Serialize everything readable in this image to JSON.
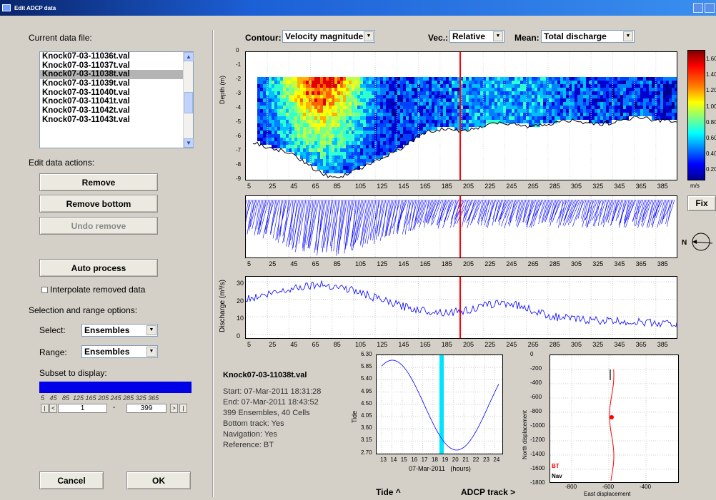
{
  "window": {
    "title": "Edit ADCP data"
  },
  "left": {
    "current_file_label": "Current data file:",
    "files": [
      "Knock07-03-11036t.val",
      "Knock07-03-11037t.val",
      "Knock07-03-11038t.val",
      "Knock07-03-11039t.val",
      "Knock07-03-11040t.val",
      "Knock07-03-11041t.val",
      "Knock07-03-11042t.val",
      "Knock07-03-11043t.val"
    ],
    "selected_file": "Knock07-03-11038t.val",
    "edit_actions_label": "Edit data actions:",
    "remove_label": "Remove",
    "remove_bottom_label": "Remove bottom",
    "undo_remove_label": "Undo remove",
    "auto_process_label": "Auto process",
    "interpolate_label": "Interpolate removed data",
    "selection_label": "Selection and range options:",
    "select_label": "Select:",
    "select_value": "Ensembles",
    "range_label": "Range:",
    "range_value": "Ensembles",
    "subset_label": "Subset to display:",
    "subset_ticks": "5   45   85  125 165 205 245 285 325 365",
    "subset_min": "1",
    "subset_dash": "-",
    "subset_max": "399",
    "cancel_label": "Cancel",
    "ok_label": "OK"
  },
  "toolbar": {
    "contour_label": "Contour:",
    "contour_value": "Velocity magnitude",
    "vec_label": "Vec.:",
    "vec_value": "Relative",
    "mean_label": "Mean:",
    "mean_value": "Total discharge"
  },
  "plots": {
    "ensemble_ticks": [
      "5",
      "25",
      "45",
      "65",
      "85",
      "105",
      "125",
      "145",
      "165",
      "185",
      "205",
      "225",
      "245",
      "265",
      "285",
      "305",
      "325",
      "345",
      "365",
      "385"
    ],
    "depth_ylabel": "Depth (m)",
    "depth_ticks": [
      "0",
      "-1",
      "-2",
      "-3",
      "-4",
      "-5",
      "-6",
      "-7",
      "-8",
      "-9"
    ],
    "discharge_ylabel": "Discharge (m³/s)",
    "discharge_ticks": [
      "30",
      "20",
      "10",
      "0"
    ],
    "colorbar_ticks": [
      "1.60",
      "1.40",
      "1.20",
      "1.00",
      "0.80",
      "0.60",
      "0.40",
      "0.20"
    ],
    "colorbar_unit": "m/s",
    "fix_label": "Fix",
    "compass_label": "N"
  },
  "info": {
    "filename": "Knock07-03-11038t.val",
    "start": "Start: 07-Mar-2011 18:31:28",
    "end": "End: 07-Mar-2011 18:43:52",
    "ensembles": "399 Ensembles, 40 Cells",
    "bottom_track": "Bottom track: Yes",
    "navigation": "Navigation: Yes",
    "reference": "Reference: BT"
  },
  "tide": {
    "ylabel": "Tide",
    "yticks": [
      "6.30",
      "5.85",
      "5.40",
      "4.95",
      "4.50",
      "4.05",
      "3.60",
      "3.15",
      "2.70"
    ],
    "xticks": [
      "13",
      "14",
      "15",
      "16",
      "17",
      "18",
      "19",
      "20",
      "21",
      "22",
      "23",
      "24"
    ],
    "xlabel": "07-Mar-2011   (hours)",
    "link_label": "Tide ^"
  },
  "track": {
    "ylabel": "North displacement",
    "xlabel": "East displacement",
    "yticks": [
      "0",
      "-200",
      "-400",
      "-600",
      "-800",
      "-1000",
      "-1200",
      "-1400",
      "-1600",
      "-1800"
    ],
    "xticks": [
      "-800",
      "-600",
      "-400"
    ],
    "legend_bt": "BT",
    "legend_nav": "Nav",
    "link_label": "ADCP track >"
  },
  "colors": {
    "accent_red": "#ff0000",
    "series_blue": "#0000ff",
    "tide_marker": "#00e5ff"
  }
}
